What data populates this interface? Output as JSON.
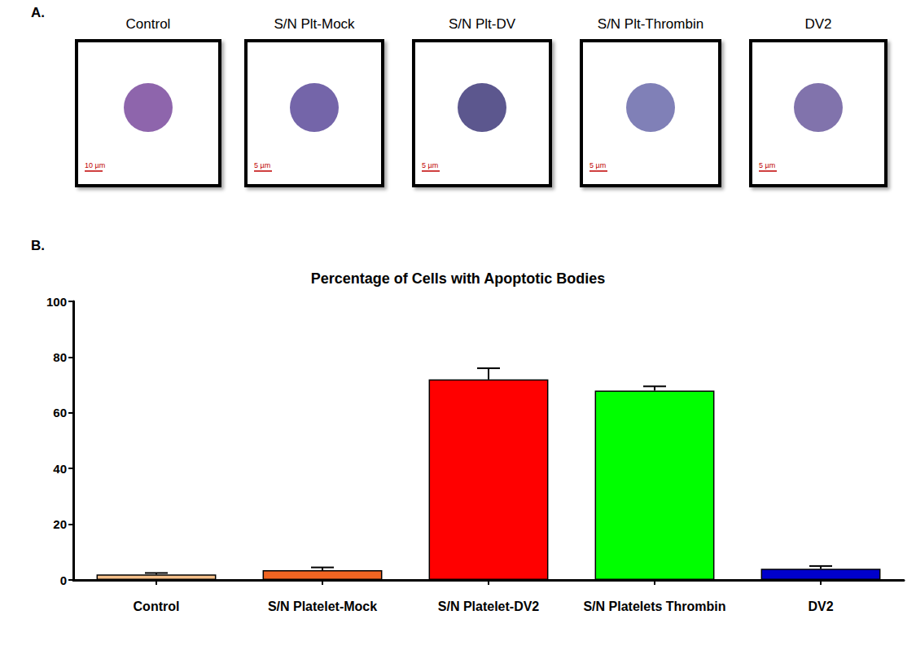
{
  "panel_a": {
    "letter": "A.",
    "images": [
      {
        "title": "Control",
        "scale_bar": "10 µm"
      },
      {
        "title": "S/N Plt-Mock",
        "scale_bar": "5 µm"
      },
      {
        "title": "S/N Plt-DV",
        "scale_bar": "5 µm"
      },
      {
        "title": "S/N Plt-Thrombin",
        "scale_bar": "5 µm"
      },
      {
        "title": "DV2",
        "scale_bar": "5 µm"
      }
    ]
  },
  "panel_b": {
    "letter": "B."
  },
  "chart_data": {
    "type": "bar",
    "title": "Percentage of Cells with Apoptotic Bodies",
    "categories": [
      "Control",
      "S/N Platelet-Mock",
      "S/N Platelet-DV2",
      "S/N Platelets Thrombin",
      "DV2"
    ],
    "values": [
      2,
      3.5,
      72,
      68,
      4
    ],
    "errors": [
      0.5,
      1,
      4,
      1.5,
      1
    ],
    "colors": [
      "#f5c08a",
      "#f26522",
      "#ff0000",
      "#00ff00",
      "#0000cc"
    ],
    "ylim": [
      0,
      100
    ],
    "yticks": [
      0,
      20,
      40,
      60,
      80,
      100
    ],
    "grid": false
  }
}
